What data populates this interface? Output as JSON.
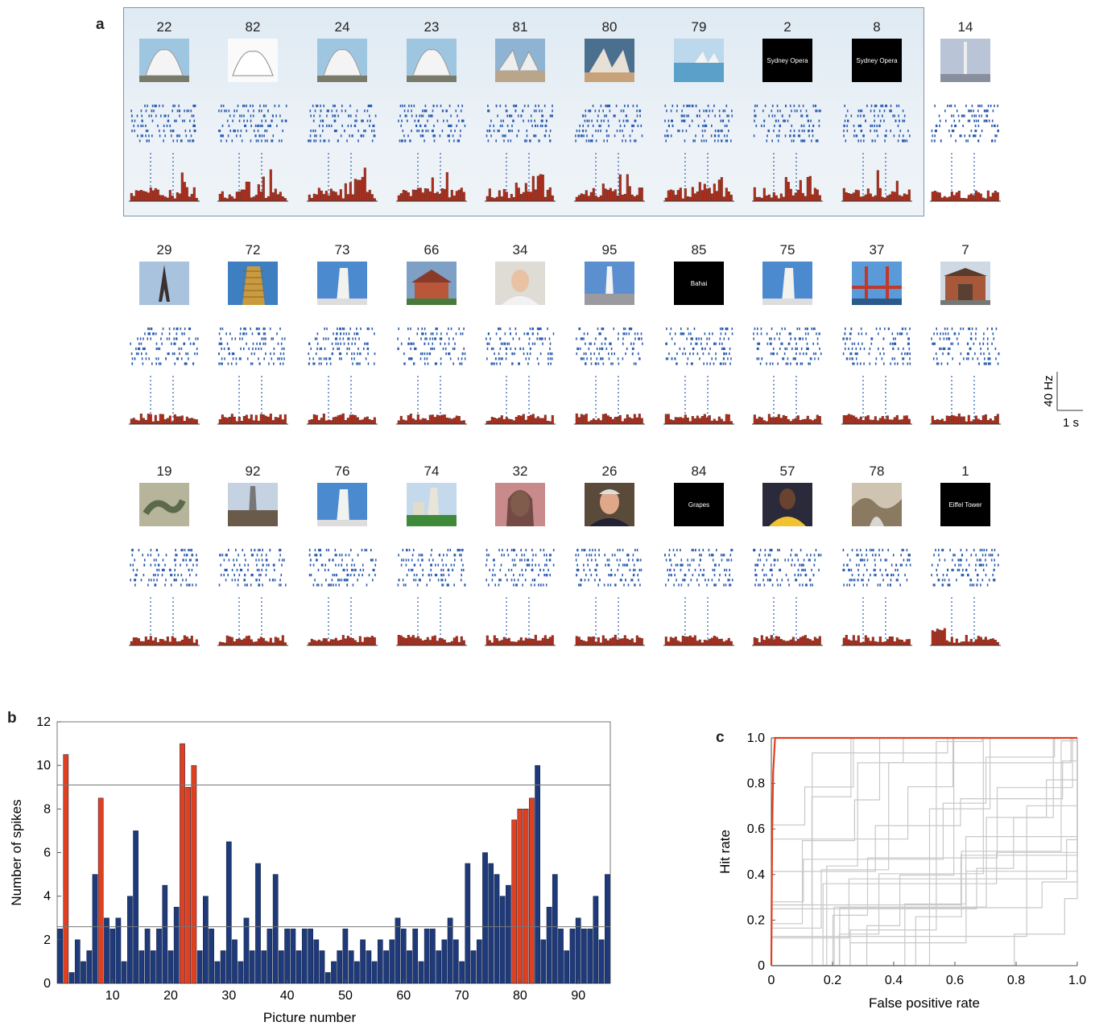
{
  "panel_labels": {
    "a": "a",
    "b": "b",
    "c": "c"
  },
  "scale": {
    "rate": "40 Hz",
    "time": "1 s"
  },
  "rows": [
    [
      {
        "num": "22",
        "kind": "lotus"
      },
      {
        "num": "82",
        "kind": "lotus-white"
      },
      {
        "num": "24",
        "kind": "lotus"
      },
      {
        "num": "23",
        "kind": "lotus"
      },
      {
        "num": "81",
        "kind": "opera"
      },
      {
        "num": "80",
        "kind": "opera-aerial"
      },
      {
        "num": "79",
        "kind": "opera-far"
      },
      {
        "num": "2",
        "kind": "text",
        "caption": "Sydney Opera"
      },
      {
        "num": "8",
        "kind": "text",
        "caption": "Sydney Opera"
      },
      {
        "num": "14",
        "kind": "monument"
      }
    ],
    [
      {
        "num": "29",
        "kind": "eiffel"
      },
      {
        "num": "72",
        "kind": "pisa-gold"
      },
      {
        "num": "73",
        "kind": "pisa"
      },
      {
        "num": "66",
        "kind": "house"
      },
      {
        "num": "34",
        "kind": "face"
      },
      {
        "num": "95",
        "kind": "obelisk"
      },
      {
        "num": "85",
        "kind": "text",
        "caption": "Bahai"
      },
      {
        "num": "75",
        "kind": "pisa"
      },
      {
        "num": "37",
        "kind": "bridge"
      },
      {
        "num": "7",
        "kind": "building"
      }
    ],
    [
      {
        "num": "19",
        "kind": "snake"
      },
      {
        "num": "92",
        "kind": "spire"
      },
      {
        "num": "76",
        "kind": "pisa"
      },
      {
        "num": "74",
        "kind": "pisa-green"
      },
      {
        "num": "32",
        "kind": "face-woman"
      },
      {
        "num": "26",
        "kind": "face-man"
      },
      {
        "num": "84",
        "kind": "text",
        "caption": "Grapes"
      },
      {
        "num": "57",
        "kind": "athlete"
      },
      {
        "num": "78",
        "kind": "rocks"
      },
      {
        "num": "1",
        "kind": "text",
        "caption": "Eiffel Tower"
      }
    ]
  ],
  "chart_data": [
    {
      "type": "bar",
      "panel": "b",
      "xlabel": "Picture number",
      "ylabel": "Number of spikes",
      "xlim": [
        0.5,
        95.5
      ],
      "ylim": [
        0,
        12
      ],
      "yticks": [
        0,
        2,
        4,
        6,
        8,
        10,
        12
      ],
      "xticks": [
        10,
        20,
        30,
        40,
        50,
        60,
        70,
        80,
        90
      ],
      "threshold_lines": [
        9.1,
        2.6
      ],
      "colors": {
        "normal": "#1f3a7a",
        "highlight": "#e0401f"
      },
      "highlighted": [
        2,
        8,
        22,
        23,
        24,
        79,
        80,
        81,
        82
      ],
      "values": [
        2.5,
        10.5,
        0.5,
        2,
        1,
        1.5,
        5,
        8.5,
        3,
        2.5,
        3,
        1,
        4,
        7,
        1.5,
        2.5,
        1.5,
        2.5,
        4.5,
        1.5,
        3.5,
        11,
        9,
        10,
        1.5,
        4,
        2.5,
        1,
        1.5,
        6.5,
        2,
        1,
        3,
        1.5,
        5.5,
        1.5,
        2.5,
        5,
        1.5,
        2.5,
        2.5,
        1.5,
        2.5,
        2.5,
        2,
        1.5,
        0.5,
        1,
        1.5,
        2.5,
        1.5,
        1,
        2,
        1.5,
        1,
        2,
        1.5,
        2,
        3,
        2.5,
        1.5,
        2.5,
        1,
        2.5,
        2.5,
        1.5,
        2,
        3,
        2,
        1,
        5.5,
        1.5,
        2,
        6,
        5.5,
        5,
        4,
        4.5,
        7.5,
        8,
        8,
        8.5,
        10,
        2,
        3.5,
        5,
        2.5,
        1.5,
        2.5,
        3,
        2.5,
        2.5,
        4,
        2,
        5
      ]
    },
    {
      "type": "line",
      "panel": "c",
      "xlabel": "False positive rate",
      "ylabel": "Hit rate",
      "xlim": [
        0,
        1
      ],
      "ylim": [
        0,
        1
      ],
      "xticks": [
        0,
        0.2,
        0.4,
        0.6,
        0.8,
        1.0
      ],
      "yticks": [
        0,
        0.2,
        0.4,
        0.6,
        0.8,
        1.0
      ],
      "xtick_labels": [
        "0",
        "0.2",
        "0.4",
        "0.6",
        "0.8",
        "1.0"
      ],
      "ytick_labels": [
        "0",
        "0.2",
        "0.4",
        "0.6",
        "0.8",
        "1.0"
      ],
      "series": [
        {
          "color": "#e0401f",
          "x": [
            0,
            0.003,
            0.006,
            0.012,
            1.0
          ],
          "y": [
            0,
            0.6,
            0.85,
            1.0,
            1.0
          ]
        }
      ]
    }
  ]
}
